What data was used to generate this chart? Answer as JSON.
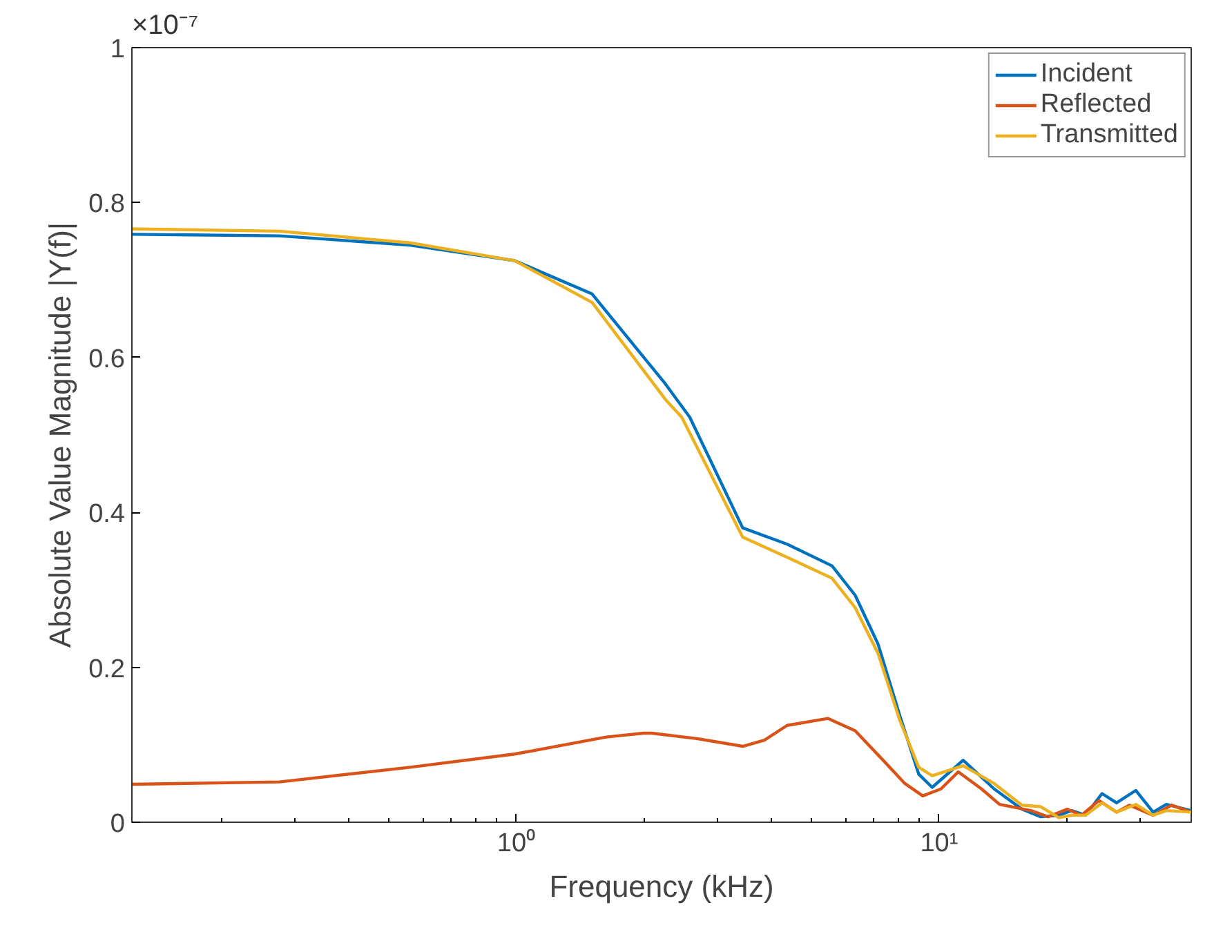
{
  "chart_data": {
    "type": "line",
    "xlabel": "Frequency (kHz)",
    "ylabel": "Absolute Value Magnitude |Y(f)|",
    "annotations": [
      "×10⁻⁷"
    ],
    "log": "x",
    "grid": false,
    "legend": "top right",
    "line_style": "solid",
    "marker": "none",
    "xlim": [
      0.123,
      39.5
    ],
    "xticks": [
      {
        "value": 1,
        "label": "10⁰"
      },
      {
        "value": 10,
        "label": "10¹"
      }
    ],
    "ylim": [
      0,
      1
    ],
    "yticks": [
      0,
      0.2,
      0.4,
      0.6,
      0.8,
      1
    ],
    "series": [
      {
        "name": "Incident",
        "color": "#0072bd",
        "x": [
          0.123,
          0.275,
          0.56,
          0.99,
          1.51,
          2.25,
          2.57,
          3.43,
          4.37,
          5.58,
          6.33,
          7.17,
          8.08,
          8.95,
          9.63,
          11.4,
          13.5,
          15.7,
          17.4,
          19.2,
          20.6,
          22.2,
          24.3,
          26.3,
          29.2,
          32.1,
          34.5,
          39.5
        ],
        "values": [
          0.759,
          0.757,
          0.745,
          0.725,
          0.682,
          0.566,
          0.523,
          0.38,
          0.359,
          0.331,
          0.293,
          0.23,
          0.137,
          0.062,
          0.045,
          0.08,
          0.043,
          0.017,
          0.007,
          0.009,
          0.015,
          0.009,
          0.037,
          0.025,
          0.041,
          0.013,
          0.023,
          0.015
        ]
      },
      {
        "name": "Reflected",
        "color": "#d95319",
        "x": [
          0.123,
          0.275,
          0.56,
          0.99,
          1.63,
          2.0,
          2.09,
          2.67,
          3.43,
          3.86,
          4.37,
          5.46,
          6.33,
          7.17,
          8.3,
          9.15,
          10.1,
          11.1,
          12.6,
          13.9,
          16.5,
          18.1,
          20.1,
          21.7,
          23.9,
          26.3,
          28.2,
          32.1,
          35.5,
          39.5
        ],
        "values": [
          0.049,
          0.052,
          0.071,
          0.088,
          0.11,
          0.115,
          0.115,
          0.108,
          0.098,
          0.106,
          0.125,
          0.134,
          0.118,
          0.087,
          0.05,
          0.034,
          0.043,
          0.065,
          0.043,
          0.023,
          0.015,
          0.007,
          0.017,
          0.009,
          0.028,
          0.013,
          0.022,
          0.009,
          0.022,
          0.013
        ]
      },
      {
        "name": "Transmitted",
        "color": "#edb120",
        "x": [
          0.123,
          0.275,
          0.56,
          0.99,
          1.51,
          2.25,
          2.46,
          3.43,
          4.37,
          5.58,
          6.33,
          7.17,
          8.08,
          8.95,
          9.63,
          11.4,
          13.5,
          15.7,
          17.4,
          19.2,
          20.6,
          22.2,
          24.3,
          26.3,
          29.2,
          32.1,
          34.5,
          39.5
        ],
        "values": [
          0.766,
          0.763,
          0.748,
          0.725,
          0.671,
          0.546,
          0.523,
          0.368,
          0.342,
          0.315,
          0.277,
          0.218,
          0.131,
          0.071,
          0.06,
          0.073,
          0.05,
          0.022,
          0.02,
          0.006,
          0.009,
          0.009,
          0.025,
          0.013,
          0.023,
          0.009,
          0.015,
          0.013
        ]
      }
    ]
  }
}
